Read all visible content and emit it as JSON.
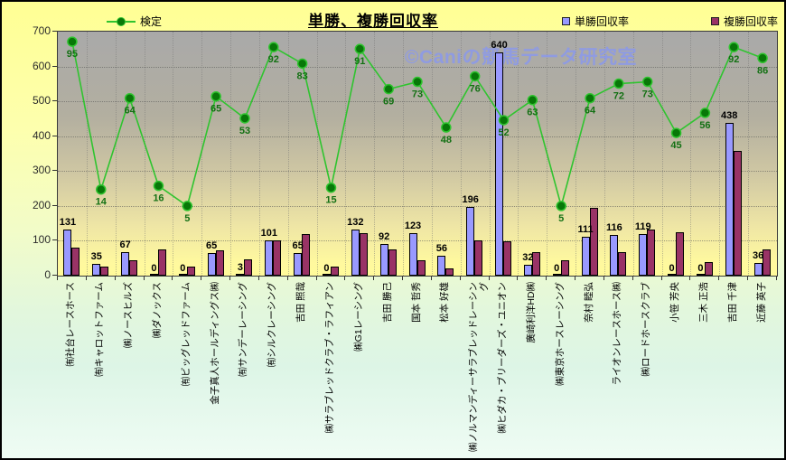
{
  "watermark": "©Caniの競馬データ研究室",
  "chart_data": {
    "type": "combo",
    "title": "単勝、複勝回収率",
    "categories": [
      "㈲社台レースホース",
      "㈲キャロットファーム",
      "㈱ノースヒルズ",
      "㈱ダノックス",
      "㈲ビッグレッドファーム",
      "金子真人ホールディングス㈱",
      "㈲サンデーレーシング",
      "㈲シルクレーシング",
      "吉田 照哉",
      "㈱サラブレッドクラブ・ラフィアン",
      "㈱G1レーシング",
      "吉田 勝己",
      "国本 哲秀",
      "松本 好雄",
      "㈱ノルマンディーサラブレッドレーシング",
      "㈱ヒダカ・ブリーダーズ・ユニオン",
      "廣崎利洋HD㈱",
      "㈱東京ホースレーシング",
      "奈村 睦弘",
      "ライオンレースホース㈱",
      "㈱ロードホースクラブ",
      "小笹 芳央",
      "三木 正浩",
      "吉田 千津",
      "近藤 英子"
    ],
    "series": [
      {
        "name": "単勝回収率",
        "type": "bar",
        "color": "#9999FF",
        "data_labels": true,
        "values": [
          131,
          35,
          67,
          0,
          0,
          65,
          3,
          101,
          65,
          0,
          132,
          92,
          123,
          56,
          196,
          640,
          32,
          0,
          111,
          116,
          119,
          0,
          0,
          438,
          36
        ]
      },
      {
        "name": "複勝回収率",
        "type": "bar",
        "color": "#993366",
        "data_labels": false,
        "values": [
          80,
          25,
          45,
          75,
          27,
          72,
          48,
          100,
          120,
          27,
          122,
          75,
          45,
          22,
          100,
          98,
          68,
          45,
          195,
          68,
          132,
          125,
          38,
          358,
          76
        ]
      },
      {
        "name": "検定",
        "type": "line",
        "color": "#2FC42F",
        "marker_color": "#087808",
        "data_labels": true,
        "values": [
          95,
          14,
          64,
          16,
          5,
          65,
          53,
          92,
          83,
          15,
          91,
          69,
          73,
          48,
          76,
          52,
          63,
          5,
          64,
          72,
          73,
          45,
          56,
          92,
          86
        ]
      }
    ],
    "y_axis": {
      "min": 0,
      "max": 700,
      "tick_interval": 100,
      "ticks": [
        0,
        100,
        200,
        300,
        400,
        500,
        600,
        700
      ]
    },
    "legend_position": "top",
    "grid": true
  }
}
